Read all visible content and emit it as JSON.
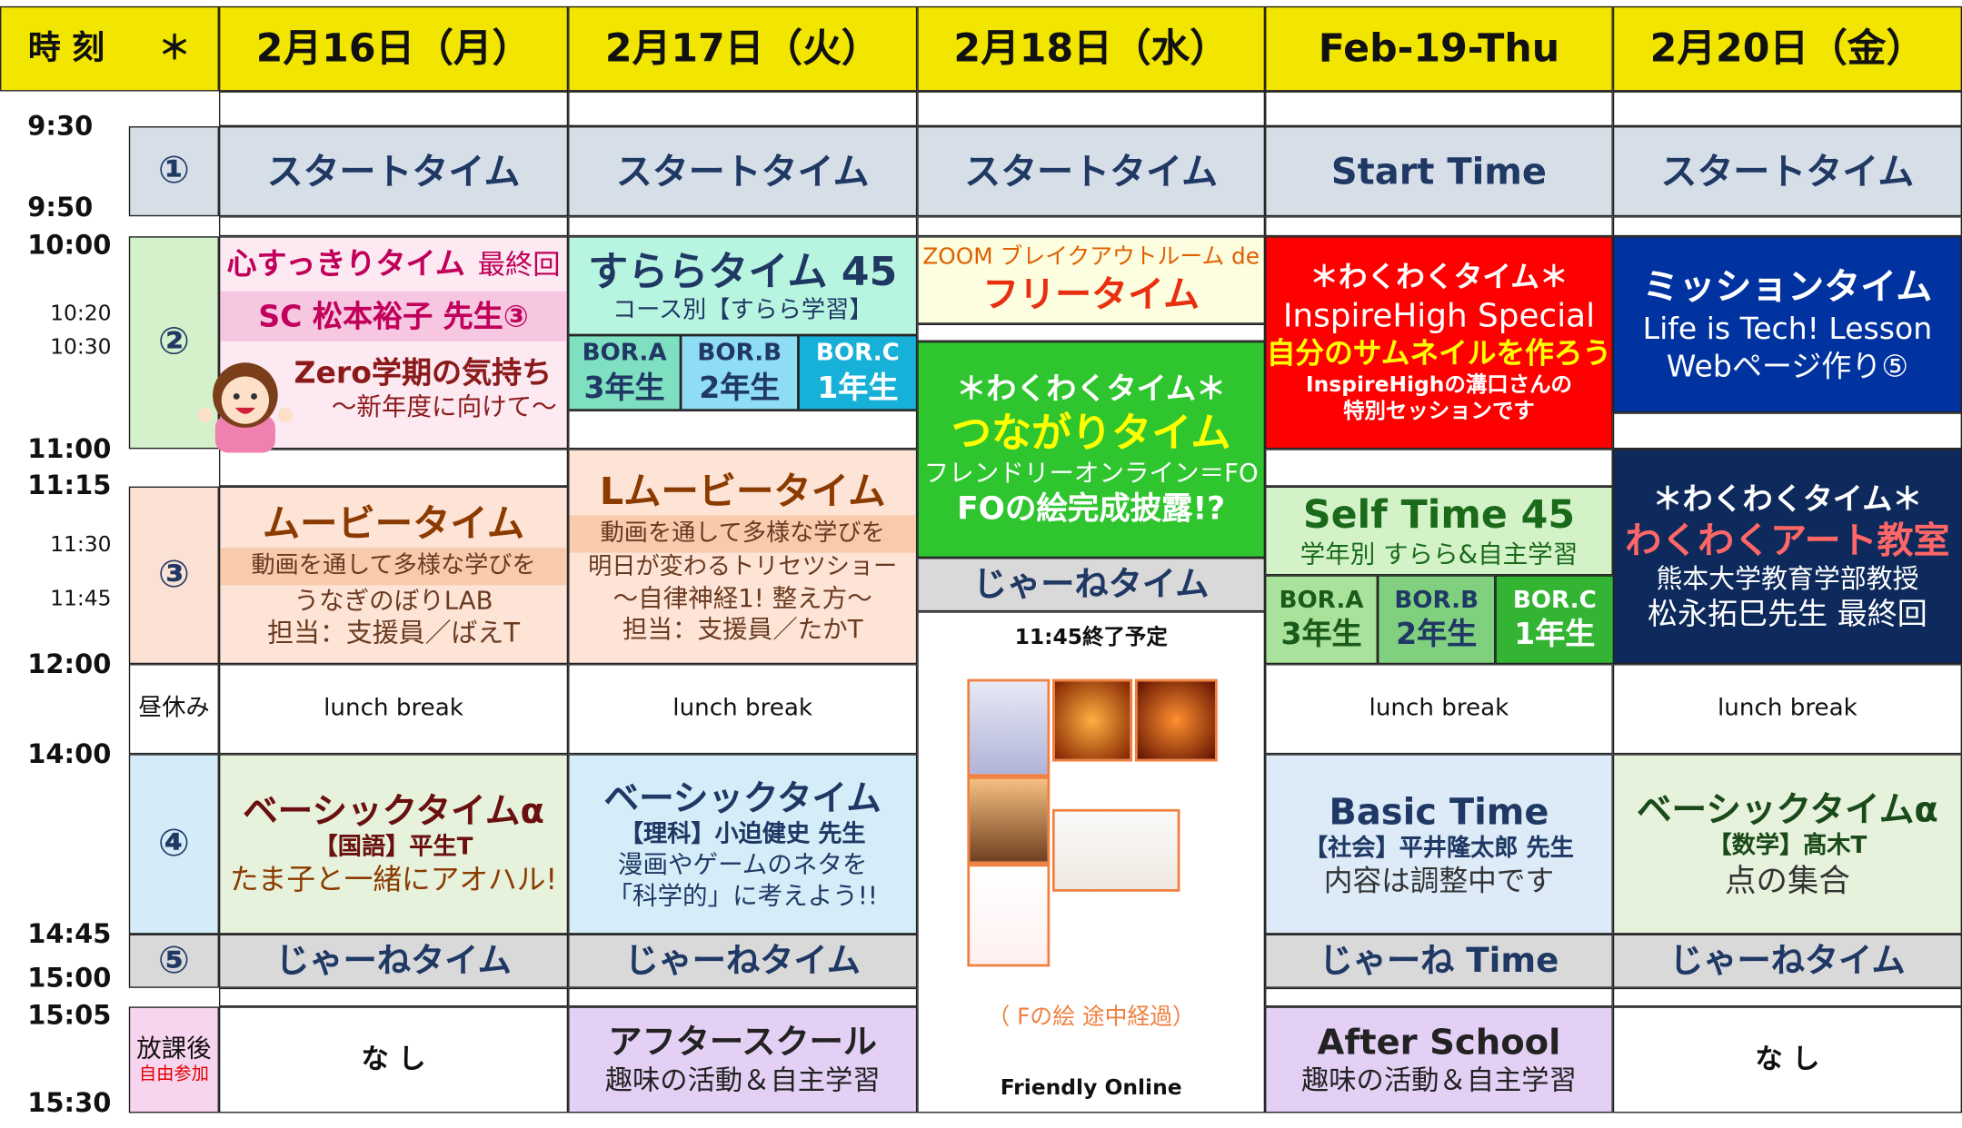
{
  "header": {
    "time": "時 刻",
    "mark": "＊",
    "days": [
      "2月16日（月）",
      "2月17日（火）",
      "2月18日（水）",
      "Feb-19-Thu",
      "2月20日（金）"
    ]
  },
  "times": [
    "9:30",
    "9:50",
    "10:00",
    "10:20",
    "10:30",
    "11:00",
    "11:15",
    "11:30",
    "11:45",
    "12:00",
    "14:00",
    "14:45",
    "15:00",
    "15:05",
    "15:30"
  ],
  "periods": {
    "p1": "①",
    "p2": "②",
    "p3": "③",
    "lunch": "昼休み",
    "p4": "④",
    "p5": "⑤",
    "after": "放課後",
    "after_note": "自由参加"
  },
  "mon": {
    "p1": "スタートタイム",
    "p2": [
      "心すっきりタイム",
      "最終回",
      "SC 松本裕子 先生③",
      "Zero学期の気持ち",
      "～新年度に向けて～"
    ],
    "p3": [
      "ムービータイム",
      "動画を通して多様な学びを",
      "うなぎのぼりLAB",
      "担当：支援員／ばえT"
    ],
    "lunch": "lunch break",
    "p4": [
      "ベーシックタイムα",
      "【国語】平生T",
      "たま子と一緒にアオハル!"
    ],
    "p5": "じゃーねタイム",
    "after": "な し"
  },
  "tue": {
    "p1": "スタートタイム",
    "p2": [
      "すららタイム 45",
      "コース別【すらら学習】"
    ],
    "bor": [
      [
        "BOR.A",
        "3年生"
      ],
      [
        "BOR.B",
        "2年生"
      ],
      [
        "BOR.C",
        "1年生"
      ]
    ],
    "p3": [
      "Lムービータイム",
      "動画を通して多様な学びを",
      "明日が変わるトリセツショー",
      "～自律神経1! 整え方～",
      "担当：支援員／たかT"
    ],
    "lunch": "lunch break",
    "p4": [
      "ベーシックタイム",
      "【理科】小迫健史 先生",
      "漫画やゲームのネタを",
      "「科学的」に考えよう!!"
    ],
    "p5": "じゃーねタイム",
    "after": [
      "アフタースクール",
      "趣味の活動＆自主学習"
    ]
  },
  "wed": {
    "p1": "スタートタイム",
    "p2a": [
      "ZOOM ブレイクアウトルーム de",
      "フリータイム"
    ],
    "p2b": [
      "＊わくわくタイム＊",
      "つながりタイム",
      "フレンドリーオンライン＝FO",
      "FOの絵完成披露!?"
    ],
    "jane": "じゃーねタイム",
    "end": "11:45終了予定",
    "caption": "（ Fの絵 途中経過）",
    "footer": "Friendly Online"
  },
  "thu": {
    "p1": "Start Time",
    "p2": [
      "＊わくわくタイム＊",
      "InspireHigh Special",
      "自分のサムネイルを作ろう",
      "InspireHighの溝口さんの",
      "特別セッションです"
    ],
    "p3": [
      "Self Time 45",
      "学年別 すらら&自主学習"
    ],
    "bor": [
      [
        "BOR.A",
        "3年生"
      ],
      [
        "BOR.B",
        "2年生"
      ],
      [
        "BOR.C",
        "1年生"
      ]
    ],
    "lunch": "lunch break",
    "p4": [
      "Basic Time",
      "【社会】平井隆太郎 先生",
      "内容は調整中です"
    ],
    "p5": "じゃーね Time",
    "after": [
      "After School",
      "趣味の活動＆自主学習"
    ]
  },
  "fri": {
    "p1": "スタートタイム",
    "p2": [
      "ミッションタイム",
      "Life is Tech! Lesson",
      "Webページ作り⑤"
    ],
    "p3": [
      "＊わくわくタイム＊",
      "わくわくアート教室",
      "熊本大学教育学部教授",
      "松永拓巳先生 最終回"
    ],
    "lunch": "lunch break",
    "p4": [
      "ベーシックタイムα",
      "【数学】髙木T",
      "点の集合"
    ],
    "p5": "じゃーねタイム",
    "after": "な し"
  }
}
